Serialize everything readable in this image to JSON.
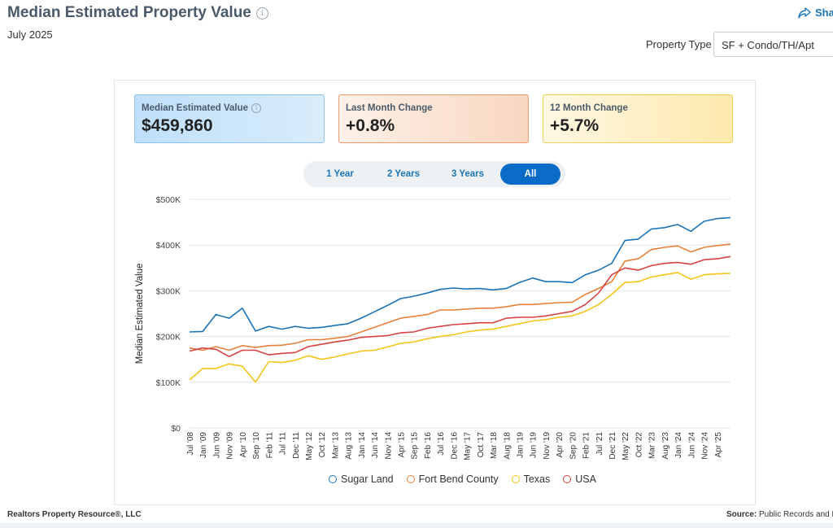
{
  "header": {
    "title": "Median Estimated Property Value",
    "subtitle": "July 2025",
    "share_label": "Sha",
    "property_type_label": "Property Type",
    "property_type_value": "SF + Condo/TH/Apt"
  },
  "stats": [
    {
      "label": "Median Estimated Value",
      "value": "$459,860"
    },
    {
      "label": "Last Month Change",
      "value": "+0.8%"
    },
    {
      "label": "12 Month Change",
      "value": "+5.7%"
    }
  ],
  "range_buttons": [
    "1 Year",
    "2 Years",
    "3 Years",
    "All"
  ],
  "active_range": "All",
  "footer": {
    "left": "Realtors Property Resource®, LLC",
    "right_bold": "Source:",
    "right_text": "Public Records and L"
  },
  "colors": {
    "Sugar Land": "#1a73b8",
    "Fort Bend County": "#e8813a",
    "Texas": "#f5c518",
    "USA": "#d94141"
  },
  "chart_data": {
    "type": "line",
    "title": "",
    "ylabel": "Median Estimated Value",
    "xlabel": "",
    "ylim": [
      0,
      500000
    ],
    "yticks": [
      "$0",
      "$100K",
      "$200K",
      "$300K",
      "$400K",
      "$500K"
    ],
    "xticks": [
      "Jul '08",
      "Jan '09",
      "Jun '09",
      "Nov '09",
      "Apr '10",
      "Sep '10",
      "Feb '11",
      "Jul '11",
      "Dec '11",
      "May '12",
      "Oct '12",
      "Mar '13",
      "Aug '13",
      "Jan '14",
      "Jun '14",
      "Nov '14",
      "Apr '15",
      "Sep '15",
      "Feb '16",
      "Jul '16",
      "Dec '16",
      "May '17",
      "Oct '17",
      "Mar '18",
      "Aug '18",
      "Jan '19",
      "Jun '19",
      "Nov '19",
      "Apr '20",
      "Sep '20",
      "Feb '21",
      "Jul '21",
      "Dec '21",
      "May '22",
      "Oct '22",
      "Mar '23",
      "Aug '23",
      "Jan '24",
      "Jun '24",
      "Nov '24",
      "Apr '25"
    ],
    "x": [
      "2008-07",
      "2009-01",
      "2009-06",
      "2009-11",
      "2010-04",
      "2010-09",
      "2011-02",
      "2011-07",
      "2011-12",
      "2012-05",
      "2012-10",
      "2013-03",
      "2013-08",
      "2014-01",
      "2014-06",
      "2014-11",
      "2015-04",
      "2015-09",
      "2016-02",
      "2016-07",
      "2016-12",
      "2017-05",
      "2017-10",
      "2018-03",
      "2018-08",
      "2019-01",
      "2019-06",
      "2019-11",
      "2020-04",
      "2020-09",
      "2021-02",
      "2021-07",
      "2021-12",
      "2022-05",
      "2022-10",
      "2023-03",
      "2023-08",
      "2024-01",
      "2024-06",
      "2024-11",
      "2025-04",
      "2025-07"
    ],
    "legend_position": "bottom",
    "series": [
      {
        "name": "Sugar Land",
        "values": [
          210000,
          211000,
          248000,
          240000,
          262000,
          212000,
          222000,
          216000,
          222000,
          218000,
          220000,
          224000,
          228000,
          240000,
          254000,
          268000,
          283000,
          288000,
          295000,
          303000,
          306000,
          304000,
          305000,
          302000,
          305000,
          318000,
          328000,
          320000,
          320000,
          318000,
          335000,
          345000,
          360000,
          410000,
          413000,
          435000,
          438000,
          445000,
          430000,
          452000,
          458000,
          460000
        ]
      },
      {
        "name": "Fort Bend County",
        "values": [
          175000,
          170000,
          178000,
          170000,
          180000,
          176000,
          180000,
          181000,
          185000,
          193000,
          193000,
          196000,
          200000,
          210000,
          220000,
          230000,
          240000,
          244000,
          248000,
          258000,
          258000,
          260000,
          262000,
          262000,
          265000,
          270000,
          270000,
          272000,
          274000,
          275000,
          292000,
          305000,
          320000,
          365000,
          370000,
          390000,
          395000,
          398000,
          385000,
          395000,
          399000,
          402000
        ]
      },
      {
        "name": "Texas",
        "values": [
          105000,
          130000,
          130000,
          140000,
          135000,
          100000,
          145000,
          143000,
          148000,
          158000,
          150000,
          155000,
          162000,
          168000,
          170000,
          177000,
          185000,
          188000,
          195000,
          200000,
          204000,
          210000,
          214000,
          216000,
          222000,
          228000,
          234000,
          237000,
          242000,
          245000,
          255000,
          270000,
          292000,
          318000,
          320000,
          330000,
          335000,
          340000,
          325000,
          335000,
          337000,
          338000
        ]
      },
      {
        "name": "USA",
        "values": [
          168000,
          175000,
          172000,
          156000,
          170000,
          170000,
          160000,
          163000,
          165000,
          178000,
          183000,
          188000,
          192000,
          198000,
          200000,
          202000,
          208000,
          210000,
          218000,
          222000,
          226000,
          228000,
          230000,
          230000,
          240000,
          242000,
          242000,
          245000,
          250000,
          255000,
          270000,
          295000,
          335000,
          350000,
          345000,
          355000,
          360000,
          362000,
          358000,
          368000,
          370000,
          375000
        ]
      }
    ]
  }
}
